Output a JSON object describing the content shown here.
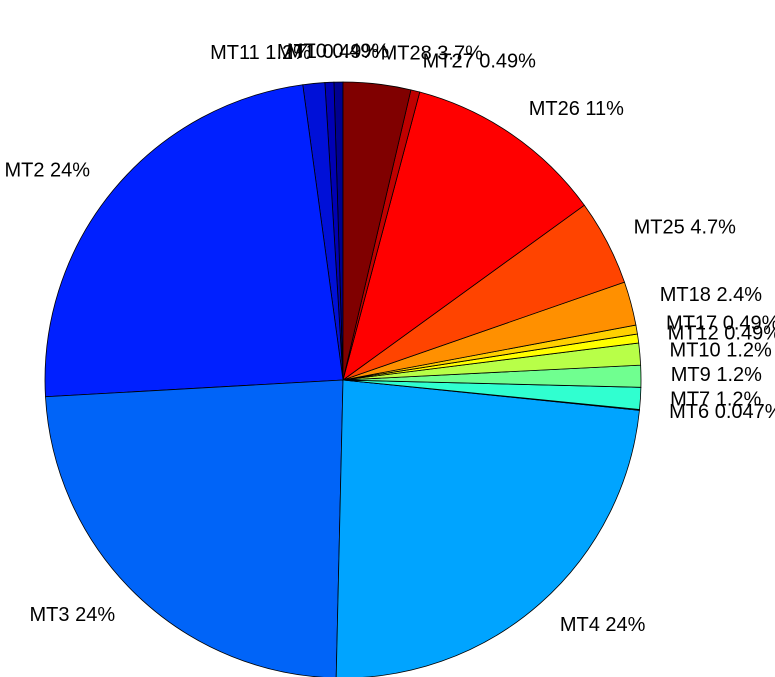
{
  "chart_data": {
    "type": "pie",
    "labels": [
      "MT0 0.49%",
      "MT1 0.49%",
      "MT11 1.2%",
      "MT2 24%",
      "MT3 24%",
      "MT4 24%",
      "MT6 0.047%",
      "MT7 1.2%",
      "MT9 1.2%",
      "MT10 1.2%",
      "MT12 0.49%",
      "MT17 0.49%",
      "MT18 2.4%",
      "MT25 4.7%",
      "MT26 11%",
      "MT27 0.49%",
      "MT28 3.7%"
    ],
    "values": [
      0.49,
      0.49,
      1.2,
      24,
      24,
      24,
      0.047,
      1.2,
      1.2,
      1.2,
      0.49,
      0.49,
      2.4,
      4.7,
      11,
      0.49,
      3.7
    ],
    "colors": [
      "#000090",
      "#0000b4",
      "#0010d8",
      "#0020ff",
      "#0064f8",
      "#00a4ff",
      "#20ffe0",
      "#30ffd0",
      "#70ff90",
      "#b8ff48",
      "#ffff00",
      "#ffd000",
      "#ff9000",
      "#ff4400",
      "#ff0000",
      "#c00000",
      "#800000"
    ]
  }
}
